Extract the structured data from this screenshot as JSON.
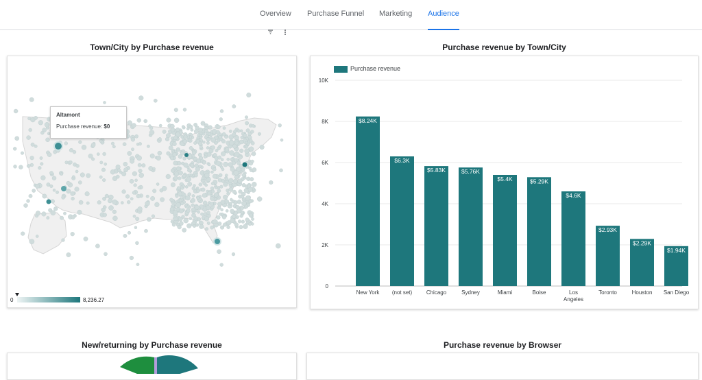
{
  "nav": {
    "tabs": [
      {
        "label": "Overview",
        "active": false
      },
      {
        "label": "Purchase Funnel",
        "active": false
      },
      {
        "label": "Marketing",
        "active": false
      },
      {
        "label": "Audience",
        "active": true
      }
    ],
    "toolbar_icons": [
      "filter-icon",
      "more-vert-icon"
    ]
  },
  "map_chart": {
    "title": "Town/City by Purchase revenue",
    "tooltip": {
      "city": "Altamont",
      "metric_label": "Purchase revenue: ",
      "metric_value": "$0"
    },
    "color_scale": {
      "min_label": "0",
      "max_label": "8,236.27",
      "low_color": "#eef4f4",
      "high_color": "#1e777c"
    }
  },
  "bar_chart_title": "Purchase revenue by Town/City",
  "chart_data": {
    "type": "bar",
    "title": "Purchase revenue by Town/City",
    "legend": "Purchase revenue",
    "legend_position": "top-left",
    "color": "#1e777c",
    "categories": [
      "New York",
      "(not set)",
      "Chicago",
      "Sydney",
      "Miami",
      "Boise",
      "Los Angeles",
      "Toronto",
      "Houston",
      "San Diego"
    ],
    "values": [
      8240,
      6300,
      5830,
      5760,
      5400,
      5290,
      4600,
      2930,
      2290,
      1940
    ],
    "data_labels": [
      "$8.24K",
      "$6.3K",
      "$5.83K",
      "$5.76K",
      "$5.4K",
      "$5.29K",
      "$4.6K",
      "$2.93K",
      "$2.29K",
      "$1.94K"
    ],
    "y_ticks": [
      0,
      2000,
      4000,
      6000,
      8000,
      10000
    ],
    "y_tick_labels": [
      "0",
      "2K",
      "4K",
      "6K",
      "8K",
      "10K"
    ],
    "ylim": [
      0,
      10000
    ],
    "grid": true
  },
  "pie_chart": {
    "title": "New/returning by Purchase revenue"
  },
  "browser_chart": {
    "title": "Purchase revenue by Browser"
  }
}
